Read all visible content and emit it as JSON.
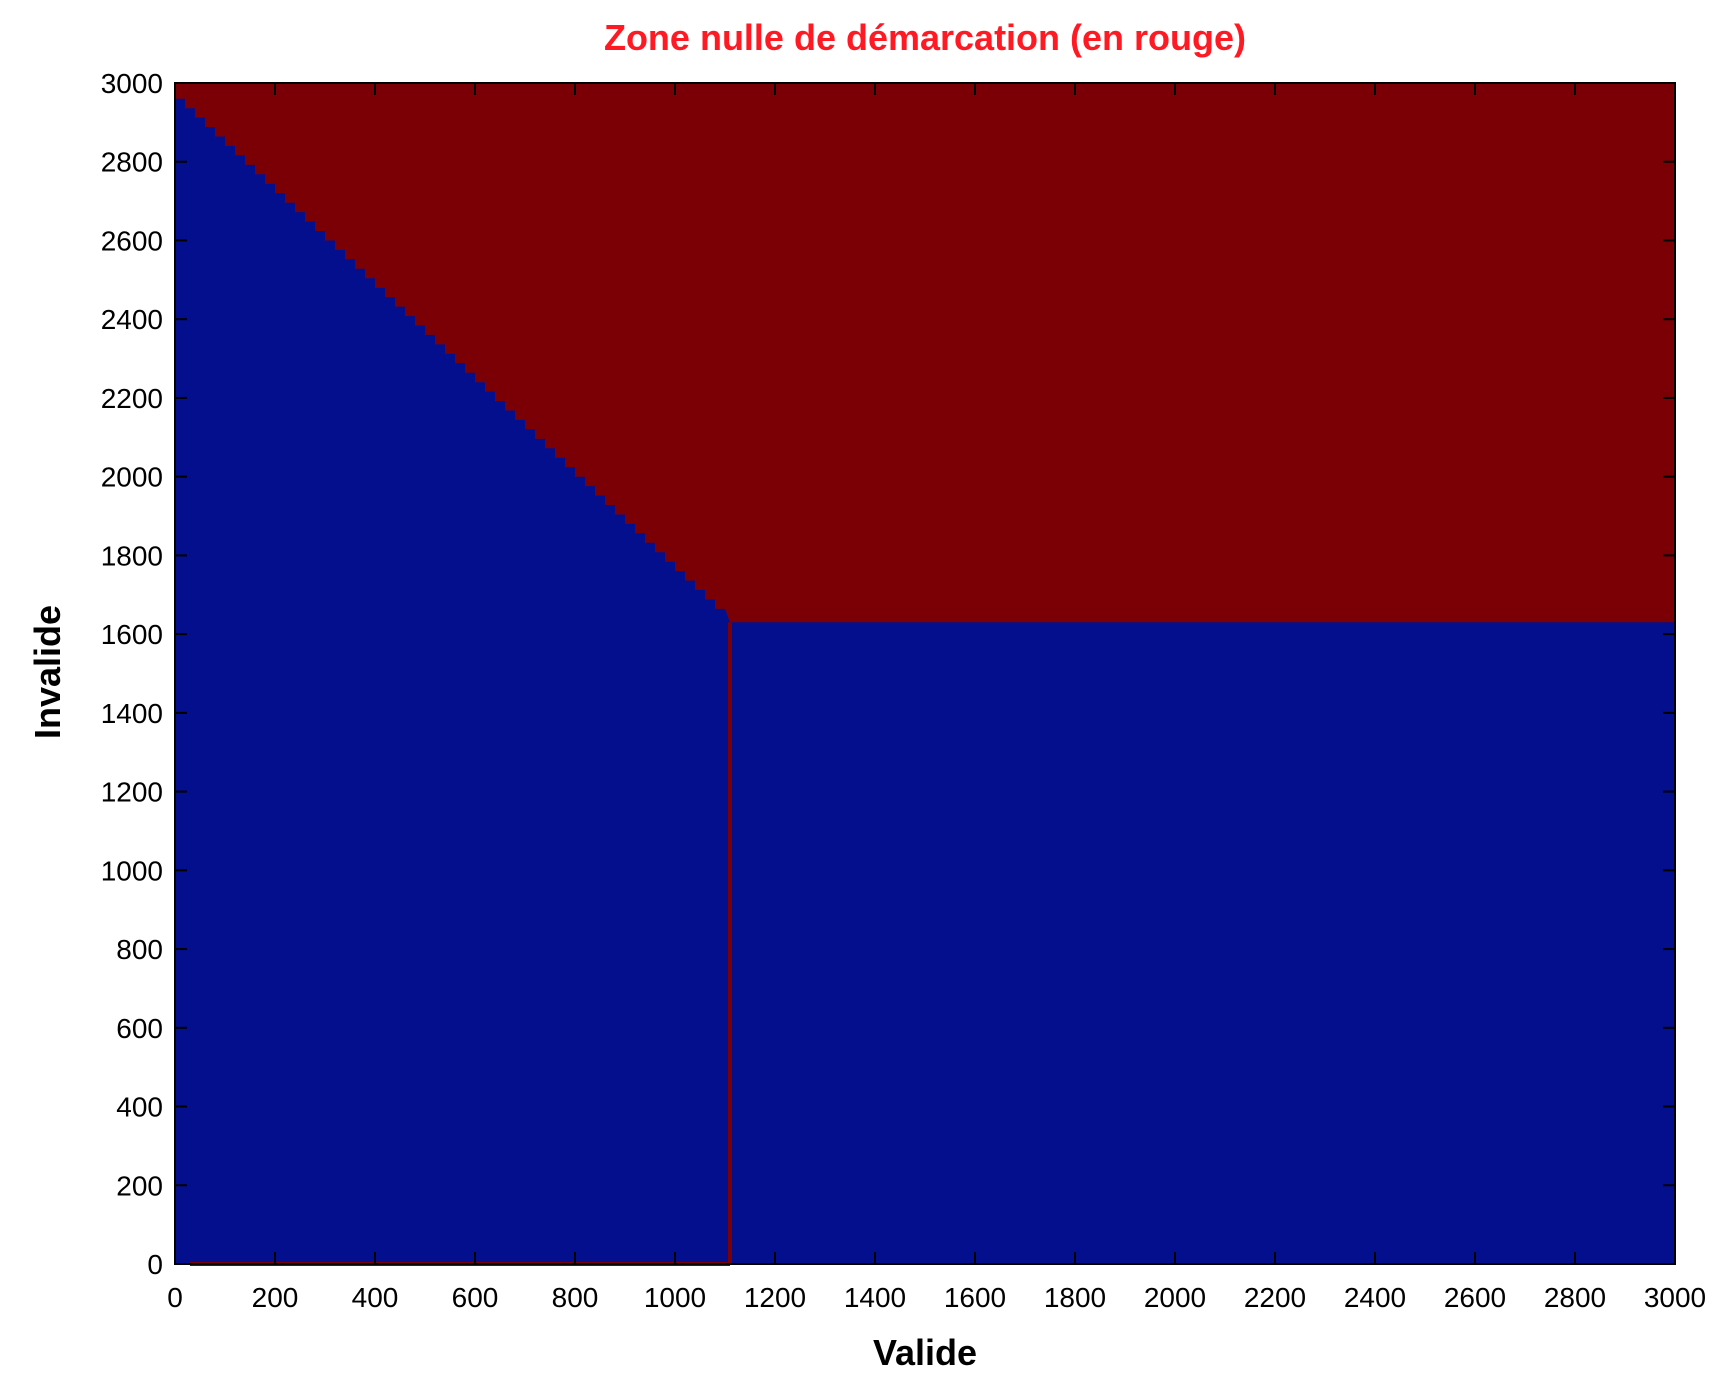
{
  "chart_data": {
    "type": "heatmap",
    "title": "Zone nulle de démarcation (en rouge)",
    "xlabel": "Valide",
    "ylabel": "Invalide",
    "xlim": [
      0,
      3000
    ],
    "ylim": [
      0,
      3000
    ],
    "xticks": [
      0,
      200,
      400,
      600,
      800,
      1000,
      1200,
      1400,
      1600,
      1800,
      2000,
      2200,
      2400,
      2600,
      2800,
      3000
    ],
    "yticks": [
      0,
      200,
      400,
      600,
      800,
      1000,
      1200,
      1400,
      1600,
      1800,
      2000,
      2200,
      2400,
      2600,
      2800,
      3000
    ],
    "grid": false,
    "legend": "none",
    "regions": [
      {
        "name": "zone nulle",
        "color": "#7b0006",
        "description_points": [
          [
            0,
            2960
          ],
          [
            1100,
            1640
          ],
          [
            1110,
            1630
          ],
          [
            3000,
            1630
          ],
          [
            3000,
            3000
          ],
          [
            0,
            3000
          ]
        ]
      }
    ],
    "boundary_lines": [
      {
        "x": [
          1110,
          1110
        ],
        "y": [
          0,
          1630
        ]
      },
      {
        "x": [
          30,
          1110
        ],
        "y": [
          0,
          0
        ]
      }
    ],
    "staircase": {
      "x_start": 0,
      "y_start": 2960,
      "x_end": 1100,
      "y_end": 1640,
      "step_x": 20
    },
    "colors": {
      "positive": "#7b0006",
      "negative": "#040f8d",
      "title": "#ff1a23",
      "axis": "#000000"
    }
  }
}
